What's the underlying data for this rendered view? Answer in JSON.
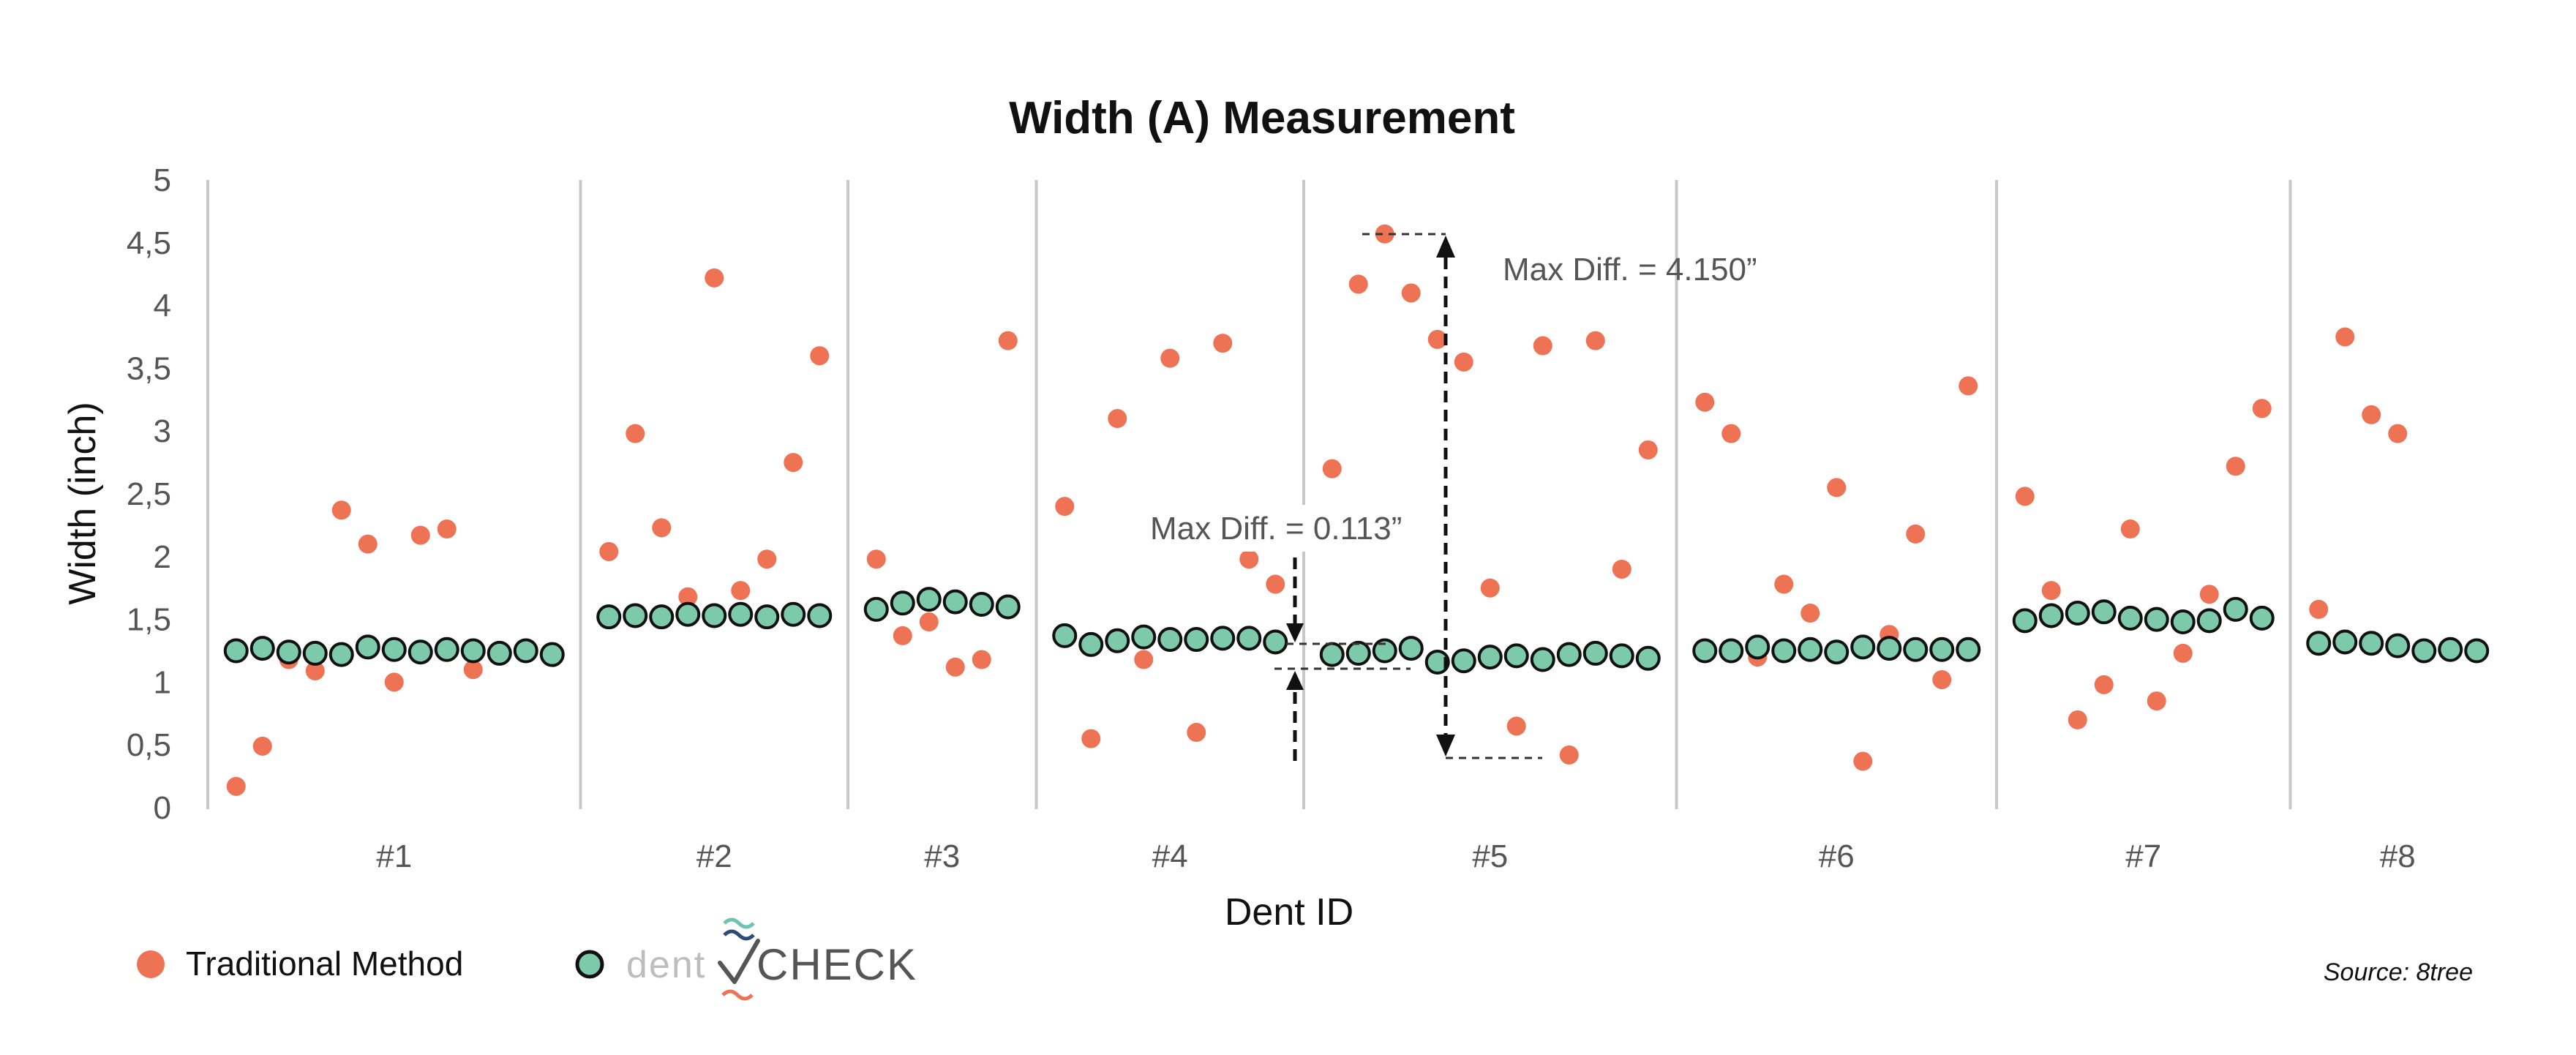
{
  "chart_data": {
    "type": "scatter",
    "title": "Width (A) Measurement",
    "xlabel": "Dent ID",
    "ylabel": "Width (inch)",
    "ylim": [
      0,
      5
    ],
    "yticks": [
      "0",
      "0,5",
      "1",
      "1,5",
      "2",
      "2,5",
      "3",
      "3,5",
      "4",
      "4,5",
      "5"
    ],
    "grid": false,
    "legend_position": "bottom-left",
    "categories": [
      "#1",
      "#2",
      "#3",
      "#4",
      "#5",
      "#6",
      "#7",
      "#8"
    ],
    "series": [
      {
        "name": "Traditional Method",
        "color": "#ee7355",
        "marker": "filled-circle",
        "groups": [
          [
            0.17,
            0.49,
            1.18,
            1.09,
            2.37,
            2.1,
            1.0,
            2.17,
            2.22,
            1.1
          ],
          [
            2.04,
            2.98,
            2.23,
            1.68,
            4.22,
            1.73,
            1.98,
            2.75,
            3.6
          ],
          [
            1.98,
            1.37,
            1.48,
            1.12,
            1.18,
            3.72
          ],
          [
            2.4,
            0.55,
            3.1,
            1.18,
            3.58,
            0.6,
            3.7,
            1.98,
            1.78
          ],
          [
            2.7,
            4.17,
            4.57,
            4.1,
            3.73,
            3.55,
            1.75,
            0.65,
            3.68,
            0.42,
            3.72,
            1.9,
            2.85
          ],
          [
            3.23,
            2.98,
            1.2,
            1.78,
            1.55,
            2.55,
            0.37,
            1.38,
            2.18,
            1.02,
            3.36
          ],
          [
            2.48,
            1.73,
            0.7,
            0.98,
            2.22,
            0.85,
            1.23,
            1.7,
            2.72,
            3.18
          ],
          [
            1.58,
            3.75,
            3.13,
            2.98
          ]
        ]
      },
      {
        "name": "dentCHECK",
        "color": "#7ccaa9",
        "marker": "circle-outline",
        "groups": [
          [
            1.25,
            1.27,
            1.24,
            1.23,
            1.22,
            1.28,
            1.26,
            1.24,
            1.26,
            1.25,
            1.23,
            1.25,
            1.22
          ],
          [
            1.52,
            1.53,
            1.52,
            1.54,
            1.53,
            1.54,
            1.52,
            1.54,
            1.53
          ],
          [
            1.58,
            1.63,
            1.66,
            1.64,
            1.62,
            1.6
          ],
          [
            1.37,
            1.3,
            1.33,
            1.36,
            1.34,
            1.34,
            1.35,
            1.35,
            1.32
          ],
          [
            1.22,
            1.23,
            1.25,
            1.27,
            1.16,
            1.17,
            1.2,
            1.21,
            1.18,
            1.22,
            1.23,
            1.21,
            1.19
          ],
          [
            1.25,
            1.25,
            1.28,
            1.25,
            1.26,
            1.24,
            1.28,
            1.27,
            1.26,
            1.26,
            1.26
          ],
          [
            1.49,
            1.53,
            1.55,
            1.56,
            1.51,
            1.5,
            1.48,
            1.49,
            1.58,
            1.51
          ],
          [
            1.31,
            1.32,
            1.31,
            1.29,
            1.25,
            1.26,
            1.25
          ]
        ]
      }
    ],
    "annotations": [
      {
        "text": "Max Diff. = 0.113”",
        "category": "#4",
        "range": [
          1.1,
          1.3
        ]
      },
      {
        "text": "Max Diff. = 4.150”",
        "category": "#5",
        "range": [
          0.42,
          4.57
        ]
      }
    ]
  },
  "legend": {
    "traditional_label": "Traditional Method",
    "brand_word_1": "dent",
    "brand_word_2": "CHECK"
  },
  "source": "Source: 8tree",
  "colors": {
    "traditional": "#ee7355",
    "dentcheck_fill": "#7ccaa9",
    "dentcheck_stroke": "#111111",
    "separator": "#c8c8c8",
    "logo_blue": "#2d4b7a",
    "logo_teal": "#6fc3b5",
    "logo_orange": "#ee7355"
  }
}
